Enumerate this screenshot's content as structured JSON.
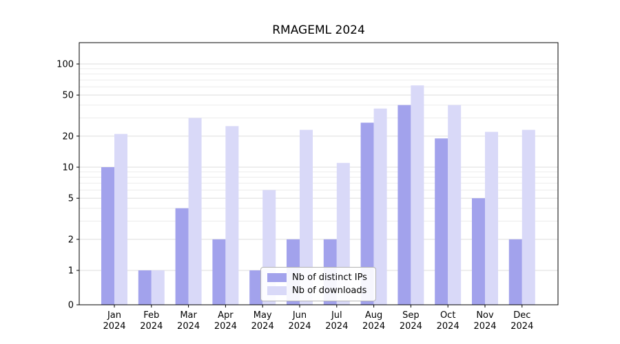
{
  "chart_data": {
    "type": "bar",
    "title": "RMAGEML 2024",
    "categories": [
      "Jan 2024",
      "Feb 2024",
      "Mar 2024",
      "Apr 2024",
      "May 2024",
      "Jun 2024",
      "Jul 2024",
      "Aug 2024",
      "Sep 2024",
      "Oct 2024",
      "Nov 2024",
      "Dec 2024"
    ],
    "series": [
      {
        "name": "Nb of distinct IPs",
        "color": "#a2a2ec",
        "values": [
          10,
          1,
          4,
          2,
          1,
          2,
          2,
          27,
          40,
          19,
          5,
          2
        ]
      },
      {
        "name": "Nb of downloads",
        "color": "#d9d9f8",
        "values": [
          21,
          1,
          30,
          25,
          6,
          23,
          11,
          37,
          62,
          40,
          22,
          23
        ]
      }
    ],
    "yticks": [
      0,
      1,
      2,
      5,
      10,
      20,
      50,
      100
    ],
    "ylim": [
      0,
      100
    ],
    "xlabel": "",
    "ylabel": "",
    "scale": "log-like",
    "grid": "horizontal",
    "legend_position": "bottom-center",
    "colors": {
      "axis": "#000000",
      "grid_major": "#dcdcdc",
      "grid_minor": "#ececec",
      "background": "#ffffff"
    }
  }
}
